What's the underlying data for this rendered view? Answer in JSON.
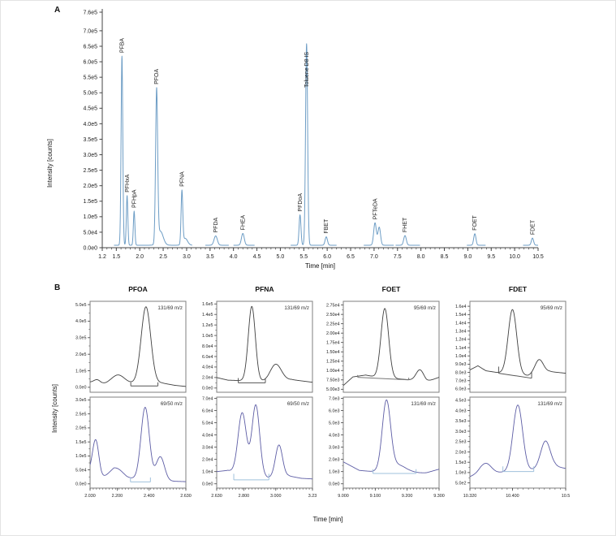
{
  "figure": {
    "panel_a_label": "A",
    "panel_b_label": "B",
    "intensity_axis_label": "Intensity [counts]",
    "time_axis_label": "Time [min]"
  },
  "panel_b": {
    "column_titles": [
      "PFOA",
      "PFNA",
      "FOET",
      "FDET"
    ]
  },
  "chart_data": [
    {
      "id": "panel_a",
      "type": "line",
      "panel": "A",
      "xlabel": "Time [min]",
      "ylabel": "Intensity [counts]",
      "xlim": [
        1.2,
        10.5
      ],
      "ylim": [
        0,
        760000
      ],
      "x_ticks": [
        [
          1.2,
          "1.2"
        ],
        [
          1.5,
          "1.5"
        ],
        [
          2,
          "2.0"
        ],
        [
          2.5,
          "2.5"
        ],
        [
          3,
          "3.0"
        ],
        [
          3.5,
          "3.5"
        ],
        [
          4,
          "4.0"
        ],
        [
          4.5,
          "4.5"
        ],
        [
          5,
          "5.0"
        ],
        [
          5.5,
          "5.5"
        ],
        [
          6,
          "6.0"
        ],
        [
          6.5,
          "6.5"
        ],
        [
          7,
          "7.0"
        ],
        [
          7.5,
          "7.5"
        ],
        [
          8,
          "8.0"
        ],
        [
          8.5,
          "8.5"
        ],
        [
          9,
          "9.0"
        ],
        [
          9.5,
          "9.5"
        ],
        [
          10,
          "10.0"
        ],
        [
          10.5,
          "10.5"
        ]
      ],
      "x_minor_step": 0.1,
      "y_ticks": [
        0,
        50000,
        100000,
        150000,
        200000,
        250000,
        300000,
        350000,
        400000,
        450000,
        500000,
        550000,
        600000,
        650000,
        700000,
        760000
      ],
      "tick_decimals": 1,
      "line_color": "#6d9dc5",
      "base": 8000,
      "segments": [
        [
          1.45,
          3.12
        ],
        [
          3.4,
          3.9
        ],
        [
          4.0,
          4.45
        ],
        [
          5.22,
          6.2
        ],
        [
          6.78,
          7.42
        ],
        [
          7.46,
          7.98
        ],
        [
          8.98,
          9.38
        ],
        [
          10.18,
          10.5
        ]
      ],
      "peaks": [
        {
          "label": "PFBA",
          "time": 1.62,
          "intensity": 610000,
          "w": 0.018
        },
        {
          "label": "PFHxA",
          "time": 1.73,
          "intensity": 160000,
          "w": 0.016
        },
        {
          "label": "PFHpA",
          "time": 1.88,
          "intensity": 110000,
          "w": 0.016
        },
        {
          "label": "PFOA",
          "time": 2.36,
          "intensity": 490000,
          "w": 0.022
        },
        {
          "label": "",
          "time": 2.44,
          "intensity": 45000,
          "w": 0.06
        },
        {
          "label": "PFNA",
          "time": 2.9,
          "intensity": 170000,
          "w": 0.018
        },
        {
          "label": "",
          "time": 2.97,
          "intensity": 22000,
          "w": 0.05
        },
        {
          "label": "PFDA",
          "time": 3.62,
          "intensity": 30000,
          "w": 0.035
        },
        {
          "label": "FHEA",
          "time": 4.2,
          "intensity": 38000,
          "w": 0.03
        },
        {
          "label": "PFDoA",
          "time": 5.42,
          "intensity": 98000,
          "w": 0.02
        },
        {
          "label": "Toluene D8 IS",
          "time": 5.56,
          "intensity": 650000,
          "w": 0.022,
          "label_dy": 58
        },
        {
          "label": "FBET",
          "time": 5.98,
          "intensity": 27000,
          "w": 0.025
        },
        {
          "label": "PFTeDA",
          "time": 7.02,
          "intensity": 72000,
          "w": 0.028
        },
        {
          "label": "",
          "time": 7.11,
          "intensity": 58000,
          "w": 0.028
        },
        {
          "label": "FHET",
          "time": 7.66,
          "intensity": 31000,
          "w": 0.028
        },
        {
          "label": "FOET",
          "time": 9.15,
          "intensity": 37000,
          "w": 0.024
        },
        {
          "label": "FDET",
          "time": 10.38,
          "intensity": 23000,
          "w": 0.024
        }
      ]
    },
    {
      "id": "pfoa_quant",
      "type": "line",
      "group_title": "PFOA",
      "row": "top",
      "col": 0,
      "mz": "131/69 m/z",
      "line_color": "#3f3f3f",
      "xlim": [
        2.03,
        2.63
      ],
      "ylim": [
        -30000,
        520000
      ],
      "y_ticks": [
        0,
        100000,
        200000,
        300000,
        400000,
        500000
      ],
      "tick_decimals": 1,
      "x_ticks": [],
      "x_minor_step": 0.02,
      "base_pts": [
        [
          2.03,
          30000
        ],
        [
          2.1,
          17000
        ],
        [
          2.15,
          22000
        ],
        [
          2.3,
          24000
        ],
        [
          2.48,
          26000
        ],
        [
          2.56,
          12000
        ],
        [
          2.63,
          5000
        ]
      ],
      "peaks": [
        {
          "time": 2.075,
          "intensity": 24000,
          "w": 0.022
        },
        {
          "time": 2.205,
          "intensity": 52000,
          "w": 0.04
        },
        {
          "time": 2.38,
          "intensity": 462000,
          "w": 0.03
        }
      ],
      "integration": {
        "x1": 2.285,
        "y1": 8000,
        "x2": 2.455,
        "y2": 8000,
        "tick": 22000,
        "color": "#555555"
      }
    },
    {
      "id": "pfoa_qual",
      "type": "line",
      "group_title": "PFOA",
      "row": "bottom",
      "col": 0,
      "mz": "69/50 m/z",
      "line_color": "#5d5da5",
      "xlim": [
        2.03,
        2.63
      ],
      "ylim": [
        -15000,
        310000
      ],
      "y_ticks": [
        0,
        50000,
        100000,
        150000,
        200000,
        250000,
        300000
      ],
      "tick_decimals": 1,
      "x_ticks": [
        [
          2.03,
          "2.030"
        ],
        [
          2.2,
          "2.200"
        ],
        [
          2.4,
          "2.400"
        ],
        [
          2.63,
          "2.630"
        ]
      ],
      "x_minor_step": 0.02,
      "base_pts": [
        [
          2.03,
          40000
        ],
        [
          2.1,
          20000
        ],
        [
          2.18,
          38000
        ],
        [
          2.26,
          20000
        ],
        [
          2.52,
          10000
        ],
        [
          2.63,
          8000
        ]
      ],
      "peaks": [
        {
          "time": 2.065,
          "intensity": 128000,
          "w": 0.02
        },
        {
          "time": 2.2,
          "intensity": 22000,
          "w": 0.04
        },
        {
          "time": 2.375,
          "intensity": 258000,
          "w": 0.026
        },
        {
          "time": 2.47,
          "intensity": 85000,
          "w": 0.026
        }
      ],
      "integration": {
        "x1": 2.283,
        "y1": 7000,
        "x2": 2.408,
        "y2": 7000,
        "tick": 16000,
        "color": "#9fc0dc"
      }
    },
    {
      "id": "pfna_quant",
      "type": "line",
      "group_title": "PFNA",
      "row": "top",
      "col": 1,
      "mz": "131/69 m/z",
      "line_color": "#3f3f3f",
      "xlim": [
        2.63,
        3.23
      ],
      "ylim": [
        -8000,
        165000
      ],
      "y_ticks": [
        0,
        20000,
        40000,
        60000,
        80000,
        100000,
        120000,
        140000,
        160000
      ],
      "tick_decimals": 1,
      "x_ticks": [],
      "x_minor_step": 0.02,
      "base_pts": [
        [
          2.63,
          20000
        ],
        [
          2.7,
          15000
        ],
        [
          2.8,
          14000
        ],
        [
          2.95,
          12000
        ],
        [
          3.1,
          16000
        ],
        [
          3.23,
          11000
        ]
      ],
      "peaks": [
        {
          "time": 2.85,
          "intensity": 142000,
          "w": 0.022
        },
        {
          "time": 3.0,
          "intensity": 32000,
          "w": 0.035
        }
      ],
      "integration": {
        "x1": 2.765,
        "y1": 10000,
        "x2": 2.935,
        "y2": 10000,
        "tick": 9000,
        "color": "#555555"
      }
    },
    {
      "id": "pfna_qual",
      "type": "line",
      "group_title": "PFNA",
      "row": "bottom",
      "col": 1,
      "mz": "69/50 m/z",
      "line_color": "#5d5da5",
      "xlim": [
        2.63,
        3.23
      ],
      "ylim": [
        -3500,
        71000
      ],
      "y_ticks": [
        0,
        10000,
        20000,
        30000,
        40000,
        50000,
        60000,
        70000
      ],
      "tick_decimals": 1,
      "x_ticks": [
        [
          2.63,
          "2.630"
        ],
        [
          2.8,
          "2.800"
        ],
        [
          3.0,
          "3.000"
        ],
        [
          3.23,
          "3.23"
        ]
      ],
      "x_minor_step": 0.02,
      "base_pts": [
        [
          2.63,
          10000
        ],
        [
          2.7,
          11000
        ],
        [
          2.75,
          9000
        ],
        [
          2.95,
          5000
        ],
        [
          3.08,
          6500
        ],
        [
          3.16,
          4500
        ],
        [
          3.23,
          4000
        ]
      ],
      "peaks": [
        {
          "time": 2.79,
          "intensity": 50000,
          "w": 0.026
        },
        {
          "time": 2.875,
          "intensity": 58000,
          "w": 0.024
        },
        {
          "time": 3.02,
          "intensity": 26000,
          "w": 0.022
        }
      ],
      "integration": {
        "x1": 2.737,
        "y1": 3200,
        "x2": 2.957,
        "y2": 3200,
        "tick": 5000,
        "color": "#9fc0dc"
      }
    },
    {
      "id": "foet_quant",
      "type": "line",
      "group_title": "FOET",
      "row": "top",
      "col": 2,
      "mz": "95/69 m/z",
      "line_color": "#3f3f3f",
      "xlim": [
        9.0,
        9.3
      ],
      "ylim": [
        4200,
        28500
      ],
      "y_ticks": [
        5000,
        7500,
        10000,
        12500,
        15000,
        17500,
        20000,
        22500,
        25000,
        27500
      ],
      "tick_decimals": 2,
      "x_ticks": [],
      "x_minor_step": 0.01,
      "base_pts": [
        [
          9.0,
          6000
        ],
        [
          9.03,
          8300
        ],
        [
          9.07,
          8800
        ],
        [
          9.1,
          8300
        ],
        [
          9.17,
          7800
        ],
        [
          9.21,
          7500
        ],
        [
          9.26,
          7000
        ],
        [
          9.3,
          8200
        ]
      ],
      "peaks": [
        {
          "time": 9.13,
          "intensity": 18500,
          "w": 0.012
        },
        {
          "time": 9.24,
          "intensity": 3000,
          "w": 0.012
        }
      ],
      "integration": {
        "x1": 9.045,
        "y1": 8200,
        "x2": 9.205,
        "y2": 7500,
        "tick": 600,
        "color": "#777777"
      }
    },
    {
      "id": "foet_qual",
      "type": "line",
      "group_title": "FOET",
      "row": "bottom",
      "col": 2,
      "mz": "131/69 m/z",
      "line_color": "#5d5da5",
      "xlim": [
        9.0,
        9.3
      ],
      "ylim": [
        -350,
        7100
      ],
      "y_ticks": [
        0,
        1000,
        2000,
        3000,
        4000,
        5000,
        6000,
        7000
      ],
      "tick_decimals": 1,
      "x_ticks": [
        [
          9.0,
          "9.000"
        ],
        [
          9.1,
          "9.100"
        ],
        [
          9.2,
          "9.200"
        ],
        [
          9.3,
          "9.300"
        ]
      ],
      "x_minor_step": 0.01,
      "base_pts": [
        [
          9.0,
          1800
        ],
        [
          9.05,
          1100
        ],
        [
          9.09,
          1000
        ],
        [
          9.2,
          800
        ],
        [
          9.26,
          900
        ],
        [
          9.3,
          1200
        ]
      ],
      "peaks": [
        {
          "time": 9.135,
          "intensity": 5600,
          "w": 0.013
        },
        {
          "time": 9.17,
          "intensity": 700,
          "w": 0.03
        }
      ],
      "integration": {
        "x1": 9.093,
        "y1": 850,
        "x2": 9.228,
        "y2": 850,
        "tick": 350,
        "color": "#9fc0dc"
      }
    },
    {
      "id": "fdet_quant",
      "type": "line",
      "group_title": "FDET",
      "row": "top",
      "col": 3,
      "mz": "95/69 m/z",
      "line_color": "#3f3f3f",
      "xlim": [
        10.32,
        10.5
      ],
      "ylim": [
        5600,
        16600
      ],
      "y_ticks": [
        6000,
        7000,
        8000,
        9000,
        10000,
        11000,
        12000,
        13000,
        14000,
        15000,
        16000
      ],
      "tick_decimals": 1,
      "x_ticks": [],
      "x_minor_step": 0.01,
      "base_pts": [
        [
          10.32,
          8300
        ],
        [
          10.335,
          8800
        ],
        [
          10.35,
          8200
        ],
        [
          10.37,
          8000
        ],
        [
          10.43,
          7600
        ],
        [
          10.47,
          8100
        ],
        [
          10.5,
          7900
        ]
      ],
      "peaks": [
        {
          "time": 10.4,
          "intensity": 7800,
          "w": 0.008
        },
        {
          "time": 10.45,
          "intensity": 1700,
          "w": 0.008
        }
      ],
      "integration": {
        "x1": 10.374,
        "y1": 7900,
        "x2": 10.436,
        "y2": 7300,
        "tick": 800,
        "color": "#555555"
      }
    },
    {
      "id": "fdet_qual",
      "type": "line",
      "group_title": "FDET",
      "row": "bottom",
      "col": 3,
      "mz": "131/69 m/z",
      "line_color": "#5d5da5",
      "xlim": [
        10.32,
        10.5
      ],
      "ylim": [
        250,
        4650
      ],
      "y_ticks": [
        500,
        1000,
        1500,
        2000,
        2500,
        3000,
        3500,
        4000,
        4500
      ],
      "tick_decimals": 1,
      "x_ticks": [
        [
          10.32,
          "10.320"
        ],
        [
          10.4,
          "10.400"
        ],
        [
          10.5,
          "10.5"
        ]
      ],
      "x_minor_step": 0.01,
      "base_pts": [
        [
          10.32,
          800
        ],
        [
          10.34,
          1000
        ],
        [
          10.37,
          1000
        ],
        [
          10.43,
          1100
        ],
        [
          10.48,
          1300
        ],
        [
          10.5,
          1200
        ]
      ],
      "peaks": [
        {
          "time": 10.35,
          "intensity": 450,
          "w": 0.01
        },
        {
          "time": 10.41,
          "intensity": 3200,
          "w": 0.009
        },
        {
          "time": 10.462,
          "intensity": 1300,
          "w": 0.009
        }
      ],
      "integration": {
        "x1": 10.382,
        "y1": 1050,
        "x2": 10.44,
        "y2": 1050,
        "tick": 250,
        "color": "#9fc0dc"
      }
    }
  ]
}
